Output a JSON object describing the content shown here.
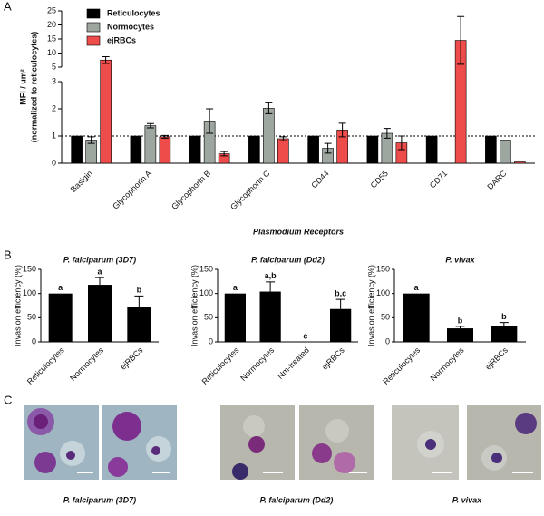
{
  "panels": [
    "A",
    "B",
    "C"
  ],
  "chart_data": [
    {
      "type": "bar",
      "x_label": "Plasmodium Receptors",
      "y_label": [
        "MFI / um²",
        "(normalized to reticulocytes)"
      ],
      "categories": [
        "Basigin",
        "Glycophorin A",
        "Glycophorin B",
        "Glycophorin C",
        "CD44",
        "CD55",
        "CD71",
        "DARC"
      ],
      "series": [
        {
          "name": "Reticulocytes",
          "color": "#000000",
          "values": [
            1,
            1,
            1,
            1,
            1,
            1,
            1,
            1
          ],
          "errors": [
            null,
            null,
            null,
            null,
            null,
            null,
            null,
            null
          ]
        },
        {
          "name": "Normocytes",
          "color": "#9ea6a0",
          "values": [
            0.85,
            1.38,
            1.55,
            2.02,
            0.55,
            1.1,
            null,
            0.85
          ],
          "errors": [
            0.12,
            0.08,
            0.45,
            0.2,
            0.18,
            0.18,
            null,
            null
          ]
        },
        {
          "name": "ejRBCs",
          "color": "#ee4b4b",
          "values": [
            7.5,
            0.97,
            0.35,
            0.9,
            1.22,
            0.75,
            14.5,
            0.05
          ],
          "errors": [
            1.2,
            0.05,
            0.08,
            0.07,
            0.25,
            0.25,
            8.5,
            null
          ]
        }
      ],
      "ylim": [
        0,
        25
      ],
      "y_break": [
        3,
        5
      ],
      "yticks": [
        0,
        1,
        2,
        3,
        5,
        10,
        15,
        20,
        25
      ],
      "reference_line": 1,
      "legend": "top-left"
    },
    {
      "type": "bar",
      "title": "P. falciparum (3D7)",
      "y_label": "Invasion efficiency (%)",
      "color": "#000000",
      "categories": [
        "Reticulocytes",
        "Normocytes",
        "ejRBCs"
      ],
      "values": [
        100,
        118,
        72
      ],
      "errors": [
        null,
        15,
        23
      ],
      "annotations": [
        "a",
        "a",
        "b"
      ],
      "ylim": [
        0,
        150
      ],
      "yticks": [
        0,
        50,
        100,
        150
      ]
    },
    {
      "type": "bar",
      "title": "P. falciparum (Dd2)",
      "y_label": "Invasion efficiency (%)",
      "color": "#000000",
      "categories": [
        "Reticulocytes",
        "Normocytes",
        "Nm-treated",
        "ejRBCs"
      ],
      "values": [
        100,
        104,
        0,
        68
      ],
      "errors": [
        null,
        20,
        null,
        20
      ],
      "annotations": [
        "a",
        "a,b",
        "c",
        "b,c"
      ],
      "ylim": [
        0,
        150
      ],
      "yticks": [
        0,
        50,
        100,
        150
      ]
    },
    {
      "type": "bar",
      "title": "P. vivax",
      "y_label": "Invasion efficiency (%)",
      "color": "#000000",
      "categories": [
        "Reticulocytes",
        "Normocytes",
        "ejRBCs"
      ],
      "values": [
        100,
        28,
        32
      ],
      "errors": [
        null,
        4,
        8
      ],
      "annotations": [
        "a",
        "b",
        "b"
      ],
      "ylim": [
        0,
        150
      ],
      "yticks": [
        0,
        50,
        100,
        150
      ]
    }
  ],
  "micrographs": {
    "captions": [
      "P. falciparum (3D7)",
      "P. falciparum (Dd2)",
      "P. vivax"
    ]
  }
}
